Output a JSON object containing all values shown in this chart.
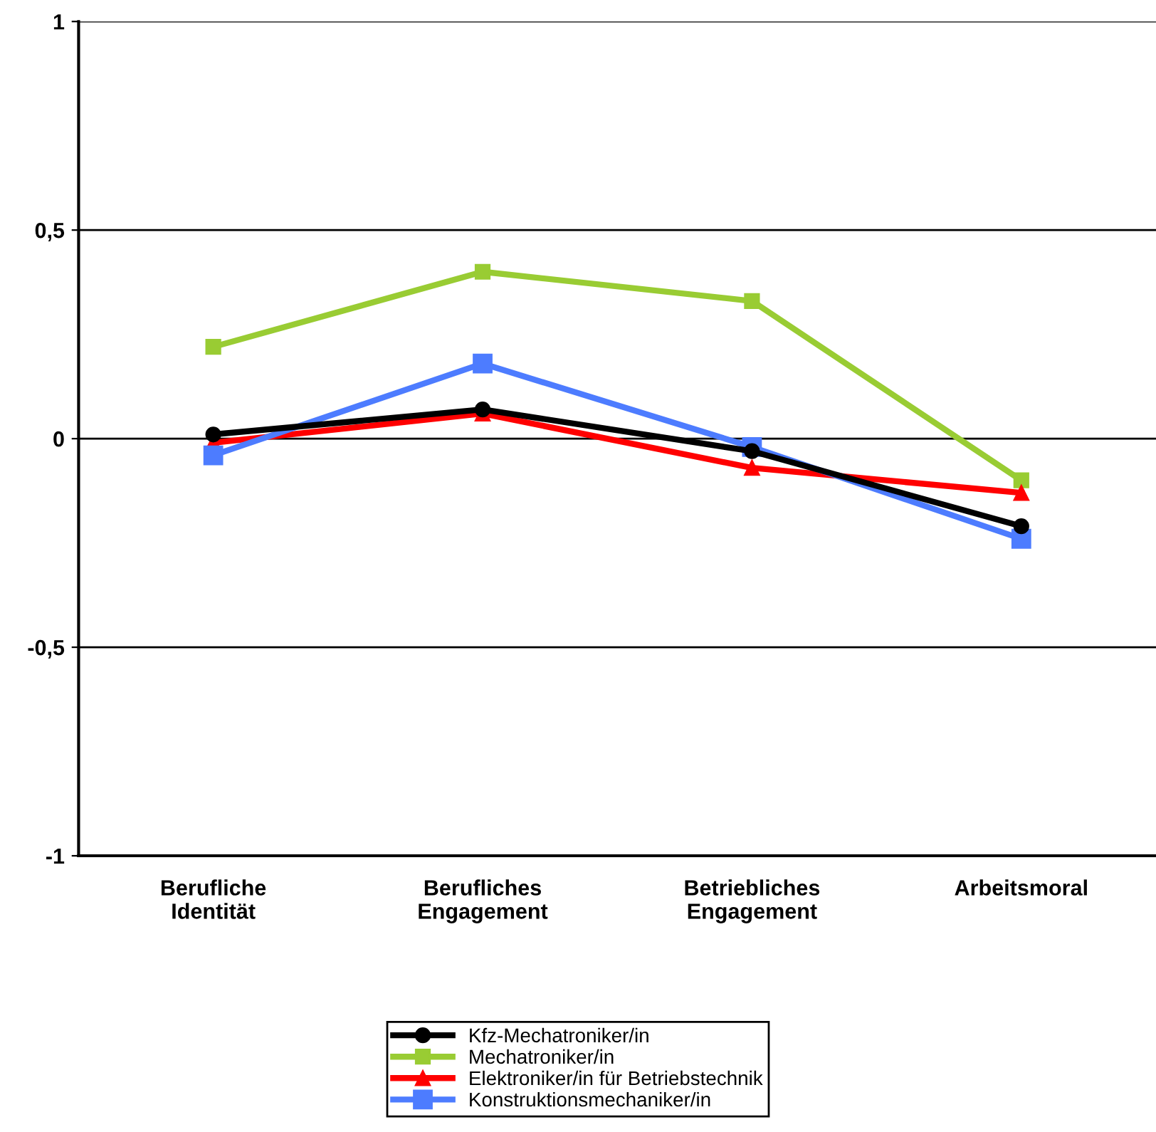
{
  "chart_data": {
    "type": "line",
    "categories": [
      "Berufliche\nIdentität",
      "Berufliches\nEngagement",
      "Betriebliches\nEngagement",
      "Arbeitsmoral"
    ],
    "series": [
      {
        "name": "Kfz-Mechatroniker/in",
        "color": "#000000",
        "marker": "circle",
        "values": [
          0.01,
          0.07,
          -0.03,
          -0.21
        ]
      },
      {
        "name": "Mechatroniker/in",
        "color": "#99cc33",
        "marker": "square",
        "values": [
          0.22,
          0.4,
          0.33,
          -0.1
        ]
      },
      {
        "name": "Elektroniker/in für Betriebstechnik",
        "color": "#ff0000",
        "marker": "triangle",
        "values": [
          -0.01,
          0.06,
          -0.07,
          -0.13
        ]
      },
      {
        "name": "Konstruktionsmechaniker/in",
        "color": "#4d7cff",
        "marker": "square",
        "values": [
          -0.04,
          0.18,
          -0.02,
          -0.24
        ]
      }
    ],
    "ylim": [
      -1,
      1
    ],
    "yticks": [
      {
        "value": -1,
        "label": "-1"
      },
      {
        "value": -0.5,
        "label": "-0,5"
      },
      {
        "value": 0,
        "label": "0"
      },
      {
        "value": 0.5,
        "label": "0,5"
      },
      {
        "value": 1,
        "label": "1"
      }
    ],
    "grid": "y",
    "legend": "bottom"
  }
}
